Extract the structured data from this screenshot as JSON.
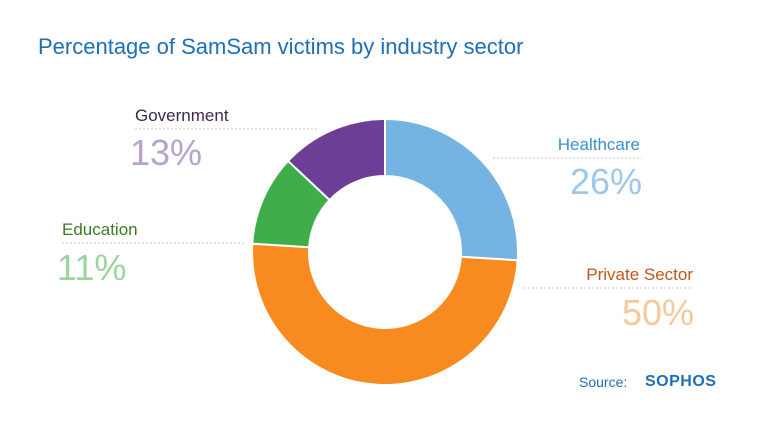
{
  "chart_data": {
    "type": "pie",
    "title": "Percentage of SamSam victims by industry sector",
    "slices": [
      {
        "label": "Healthcare",
        "value": 26,
        "display": "26%",
        "color": "#74b3e2"
      },
      {
        "label": "Private Sector",
        "value": 50,
        "display": "50%",
        "color": "#f78b1f"
      },
      {
        "label": "Education",
        "value": 11,
        "display": "11%",
        "color": "#3fae4a"
      },
      {
        "label": "Government",
        "value": 13,
        "display": "13%",
        "color": "#6c3e96"
      }
    ]
  },
  "footer": {
    "source_label": "Source:",
    "brand": "SOPHOS"
  },
  "colors": {
    "title": "#1d6fb8",
    "name_healthcare": "#3a8fd0",
    "name_private": "#c2561a",
    "name_education": "#3b7d24",
    "name_government": "#3c2a4d",
    "pct_healthcare": "#9cc8ea",
    "pct_private": "#f6c99a",
    "pct_education": "#9cd49f",
    "pct_government": "#b8a2cd"
  }
}
